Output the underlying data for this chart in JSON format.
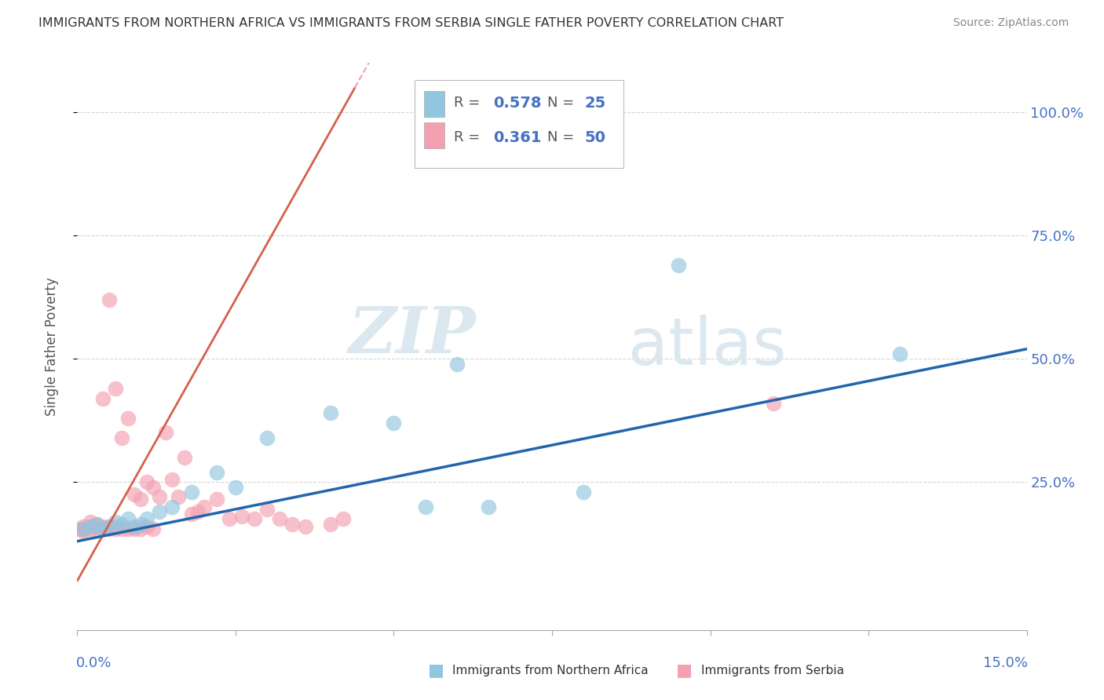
{
  "title": "IMMIGRANTS FROM NORTHERN AFRICA VS IMMIGRANTS FROM SERBIA SINGLE FATHER POVERTY CORRELATION CHART",
  "source": "Source: ZipAtlas.com",
  "ylabel": "Single Father Poverty",
  "yticks": [
    "100.0%",
    "75.0%",
    "50.0%",
    "25.0%"
  ],
  "ytick_vals": [
    1.0,
    0.75,
    0.5,
    0.25
  ],
  "xlim": [
    0,
    0.15
  ],
  "ylim": [
    -0.05,
    1.1
  ],
  "blue_color": "#92C5DE",
  "pink_color": "#F4A0B0",
  "blue_line_color": "#2166AC",
  "pink_line_color": "#D6604D",
  "pink_line_dashed_color": "#F4A0B0",
  "watermark_zip": "ZIP",
  "watermark_atlas": "atlas",
  "blue_scatter_x": [
    0.001,
    0.002,
    0.003,
    0.004,
    0.005,
    0.006,
    0.007,
    0.008,
    0.009,
    0.01,
    0.011,
    0.013,
    0.015,
    0.018,
    0.022,
    0.025,
    0.03,
    0.04,
    0.05,
    0.055,
    0.06,
    0.065,
    0.08,
    0.095,
    0.13
  ],
  "blue_scatter_y": [
    0.155,
    0.16,
    0.165,
    0.155,
    0.16,
    0.17,
    0.165,
    0.175,
    0.16,
    0.165,
    0.175,
    0.19,
    0.2,
    0.23,
    0.27,
    0.24,
    0.34,
    0.39,
    0.37,
    0.2,
    0.49,
    0.2,
    0.23,
    0.69,
    0.51
  ],
  "pink_scatter_x": [
    0.0005,
    0.001,
    0.001,
    0.001,
    0.002,
    0.002,
    0.002,
    0.003,
    0.003,
    0.003,
    0.004,
    0.004,
    0.004,
    0.005,
    0.005,
    0.005,
    0.006,
    0.006,
    0.006,
    0.007,
    0.007,
    0.008,
    0.008,
    0.009,
    0.009,
    0.01,
    0.01,
    0.011,
    0.011,
    0.012,
    0.012,
    0.013,
    0.014,
    0.015,
    0.016,
    0.017,
    0.018,
    0.019,
    0.02,
    0.022,
    0.024,
    0.026,
    0.028,
    0.03,
    0.032,
    0.034,
    0.036,
    0.04,
    0.042,
    0.11
  ],
  "pink_scatter_y": [
    0.155,
    0.15,
    0.155,
    0.16,
    0.155,
    0.16,
    0.17,
    0.155,
    0.16,
    0.165,
    0.155,
    0.16,
    0.42,
    0.155,
    0.16,
    0.62,
    0.155,
    0.16,
    0.44,
    0.155,
    0.34,
    0.155,
    0.38,
    0.155,
    0.225,
    0.155,
    0.215,
    0.16,
    0.25,
    0.155,
    0.24,
    0.22,
    0.35,
    0.255,
    0.22,
    0.3,
    0.185,
    0.19,
    0.2,
    0.215,
    0.175,
    0.18,
    0.175,
    0.195,
    0.175,
    0.165,
    0.16,
    0.165,
    0.175,
    0.41
  ],
  "blue_line_x0": 0.0,
  "blue_line_y0": 0.13,
  "blue_line_x1": 0.15,
  "blue_line_y1": 0.52,
  "pink_line_x0": 0.0,
  "pink_line_y0": 0.05,
  "pink_line_x1": 0.025,
  "pink_line_y1": 0.62
}
